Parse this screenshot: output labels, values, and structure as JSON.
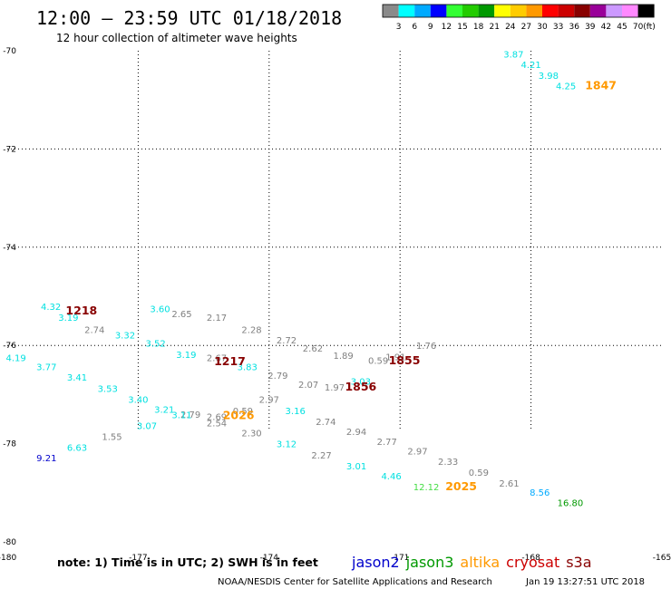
{
  "header": {
    "title": "12:00 — 23:59 UTC 01/18/2018",
    "subtitle": "12 hour collection of altimeter wave heights"
  },
  "legend": {
    "bins": [
      {
        "label": "3",
        "color": "#8a8a8a"
      },
      {
        "label": "6",
        "color": "#00ffff"
      },
      {
        "label": "9",
        "color": "#00aaff"
      },
      {
        "label": "12",
        "color": "#0000ff"
      },
      {
        "label": "15",
        "color": "#33ff33"
      },
      {
        "label": "18",
        "color": "#22cc00"
      },
      {
        "label": "21",
        "color": "#009900"
      },
      {
        "label": "24",
        "color": "#ffff00"
      },
      {
        "label": "27",
        "color": "#ffcc00"
      },
      {
        "label": "30",
        "color": "#ff9900"
      },
      {
        "label": "33",
        "color": "#ff0000"
      },
      {
        "label": "36",
        "color": "#cc0000"
      },
      {
        "label": "39",
        "color": "#880000"
      },
      {
        "label": "42",
        "color": "#990099"
      },
      {
        "label": "45",
        "color": "#cc99ff"
      },
      {
        "label": "70",
        "color": "#ff88ff"
      },
      {
        "label": "",
        "color": "#000000"
      }
    ],
    "unit": "(ft)"
  },
  "axes": {
    "lat_ticks": [
      {
        "lat": -70,
        "label": "-70"
      },
      {
        "lat": -72,
        "label": "-72"
      },
      {
        "lat": -74,
        "label": "-74"
      },
      {
        "lat": -76,
        "label": "-76"
      },
      {
        "lat": -78,
        "label": "-78"
      },
      {
        "lat": -80,
        "label": "-80"
      }
    ],
    "lon_ticks": [
      {
        "lon": -180,
        "label": "-180"
      },
      {
        "lon": -177,
        "label": "-177"
      },
      {
        "lon": -174,
        "label": "-174"
      },
      {
        "lon": -171,
        "label": "-171"
      },
      {
        "lon": -168,
        "label": "-168"
      },
      {
        "lon": -165,
        "label": "-165"
      }
    ],
    "grid_lon": [
      -177,
      -174,
      -171,
      -168
    ],
    "grid_lat": [
      -72,
      -74,
      -76
    ]
  },
  "footer": {
    "note": "note:  1) Time is in UTC;  2) SWH is in feet",
    "satellites": [
      {
        "name": "jason2",
        "color": "#0000cc"
      },
      {
        "name": "jason3",
        "color": "#009900"
      },
      {
        "name": "altika",
        "color": "#ff9900"
      },
      {
        "name": "cryosat",
        "color": "#cc0000"
      },
      {
        "name": "s3a",
        "color": "#880000"
      }
    ],
    "credit": "NOAA/NESDIS Center for Satellite Applications and Research",
    "timestamp": "Jan 19 13:27:51 UTC 2018"
  },
  "chart_data": {
    "type": "scatter",
    "title": "12:00 — 23:59 UTC 01/18/2018",
    "subtitle": "12 hour collection of altimeter wave heights",
    "xlim": [
      -180,
      -165
    ],
    "ylim": [
      -80,
      -70
    ],
    "unit": "ft",
    "observations": [
      {
        "lon": -168.4,
        "lat": -70.14,
        "v": "3.87",
        "c": "#00e0e0"
      },
      {
        "lon": -168.0,
        "lat": -70.35,
        "v": "4.21",
        "c": "#00e0e0"
      },
      {
        "lon": -167.6,
        "lat": -70.57,
        "v": "3.98",
        "c": "#00e0e0"
      },
      {
        "lon": -167.2,
        "lat": -70.78,
        "v": "4.25",
        "c": "#00e0e0"
      },
      {
        "lon": -176.5,
        "lat": -75.32,
        "v": "3.60",
        "c": "#00e0e0"
      },
      {
        "lon": -176.0,
        "lat": -75.42,
        "v": "2.65",
        "c": "#808080"
      },
      {
        "lon": -175.2,
        "lat": -75.5,
        "v": "2.17",
        "c": "#808080"
      },
      {
        "lon": -174.4,
        "lat": -75.75,
        "v": "2.28",
        "c": "#808080"
      },
      {
        "lon": -173.6,
        "lat": -75.96,
        "v": "2.72",
        "c": "#808080"
      },
      {
        "lon": -173.0,
        "lat": -76.13,
        "v": "2.62",
        "c": "#808080"
      },
      {
        "lon": -172.3,
        "lat": -76.27,
        "v": "1.89",
        "c": "#808080"
      },
      {
        "lon": -171.5,
        "lat": -76.37,
        "v": "0.59",
        "c": "#808080"
      },
      {
        "lon": -179.0,
        "lat": -75.28,
        "v": "4.32",
        "c": "#00e0e0"
      },
      {
        "lon": -178.6,
        "lat": -75.5,
        "v": "3.19",
        "c": "#00e0e0"
      },
      {
        "lon": -178.0,
        "lat": -75.75,
        "v": "2.74",
        "c": "#808080"
      },
      {
        "lon": -177.3,
        "lat": -75.86,
        "v": "3.32",
        "c": "#00e0e0"
      },
      {
        "lon": -176.6,
        "lat": -76.02,
        "v": "3.52",
        "c": "#00e0e0"
      },
      {
        "lon": -175.9,
        "lat": -76.25,
        "v": "3.19",
        "c": "#00e0e0"
      },
      {
        "lon": -175.2,
        "lat": -76.32,
        "v": "2.67",
        "c": "#808080"
      },
      {
        "lon": -174.5,
        "lat": -76.5,
        "v": "3.83",
        "c": "#00e0e0"
      },
      {
        "lon": -173.8,
        "lat": -76.68,
        "v": "2.79",
        "c": "#808080"
      },
      {
        "lon": -173.1,
        "lat": -76.86,
        "v": "2.07",
        "c": "#808080"
      },
      {
        "lon": -172.5,
        "lat": -76.92,
        "v": "1.97",
        "c": "#808080"
      },
      {
        "lon": -171.9,
        "lat": -76.8,
        "v": "3.03",
        "c": "#00e0e0"
      },
      {
        "lon": -171.1,
        "lat": -76.3,
        "v": "1.91",
        "c": "#808080"
      },
      {
        "lon": -170.4,
        "lat": -76.07,
        "v": "1.76",
        "c": "#808080"
      },
      {
        "lon": -179.8,
        "lat": -76.32,
        "v": "4.19",
        "c": "#00e0e0"
      },
      {
        "lon": -179.1,
        "lat": -76.5,
        "v": "3.77",
        "c": "#00e0e0"
      },
      {
        "lon": -178.4,
        "lat": -76.72,
        "v": "3.41",
        "c": "#00e0e0"
      },
      {
        "lon": -177.7,
        "lat": -76.95,
        "v": "3.53",
        "c": "#00e0e0"
      },
      {
        "lon": -177.0,
        "lat": -77.17,
        "v": "3.40",
        "c": "#00e0e0"
      },
      {
        "lon": -176.4,
        "lat": -77.37,
        "v": "3.21",
        "c": "#00e0e0"
      },
      {
        "lon": -175.8,
        "lat": -77.47,
        "v": "2.79",
        "c": "#808080"
      },
      {
        "lon": -175.2,
        "lat": -77.52,
        "v": "2.69",
        "c": "#808080"
      },
      {
        "lon": -174.6,
        "lat": -77.4,
        "v": "0.59",
        "c": "#808080"
      },
      {
        "lon": -174.0,
        "lat": -77.17,
        "v": "2.97",
        "c": "#808080"
      },
      {
        "lon": -173.4,
        "lat": -77.4,
        "v": "3.16",
        "c": "#00e0e0"
      },
      {
        "lon": -172.7,
        "lat": -77.62,
        "v": "2.74",
        "c": "#808080"
      },
      {
        "lon": -172.0,
        "lat": -77.82,
        "v": "2.94",
        "c": "#808080"
      },
      {
        "lon": -171.3,
        "lat": -78.03,
        "v": "2.77",
        "c": "#808080"
      },
      {
        "lon": -170.6,
        "lat": -78.22,
        "v": "2.97",
        "c": "#808080"
      },
      {
        "lon": -169.9,
        "lat": -78.43,
        "v": "2.33",
        "c": "#808080"
      },
      {
        "lon": -169.2,
        "lat": -78.65,
        "v": "0.59",
        "c": "#808080"
      },
      {
        "lon": -168.5,
        "lat": -78.87,
        "v": "2.61",
        "c": "#808080"
      },
      {
        "lon": -167.8,
        "lat": -79.06,
        "v": "8.56",
        "c": "#00aaff"
      },
      {
        "lon": -167.1,
        "lat": -79.27,
        "v": "16.80",
        "c": "#009900"
      },
      {
        "lon": -179.1,
        "lat": -78.36,
        "v": "9.21",
        "c": "#0000cc"
      },
      {
        "lon": -178.4,
        "lat": -78.15,
        "v": "6.63",
        "c": "#00e0e0"
      },
      {
        "lon": -177.6,
        "lat": -77.92,
        "v": "1.55",
        "c": "#808080"
      },
      {
        "lon": -176.8,
        "lat": -77.7,
        "v": "3.07",
        "c": "#00e0e0"
      },
      {
        "lon": -176.0,
        "lat": -77.48,
        "v": "3.11",
        "c": "#00e0e0"
      },
      {
        "lon": -175.2,
        "lat": -77.65,
        "v": "2.54",
        "c": "#808080"
      },
      {
        "lon": -174.4,
        "lat": -77.85,
        "v": "2.30",
        "c": "#808080"
      },
      {
        "lon": -173.6,
        "lat": -78.07,
        "v": "3.12",
        "c": "#00e0e0"
      },
      {
        "lon": -172.8,
        "lat": -78.3,
        "v": "2.27",
        "c": "#808080"
      },
      {
        "lon": -172.0,
        "lat": -78.52,
        "v": "3.01",
        "c": "#00e0e0"
      },
      {
        "lon": -171.2,
        "lat": -78.73,
        "v": "4.46",
        "c": "#00e0e0"
      },
      {
        "lon": -170.4,
        "lat": -78.95,
        "v": "12.12",
        "c": "#44dd44"
      }
    ],
    "time_labels": [
      {
        "lon": -166.4,
        "lat": -70.78,
        "t": "1847",
        "c": "#ff9900"
      },
      {
        "lon": -170.9,
        "lat": -76.38,
        "t": "1855",
        "c": "#880000"
      },
      {
        "lon": -178.3,
        "lat": -75.37,
        "t": "1218",
        "c": "#880000"
      },
      {
        "lon": -174.9,
        "lat": -76.4,
        "t": "1217",
        "c": "#880000"
      },
      {
        "lon": -171.9,
        "lat": -76.92,
        "t": "1856",
        "c": "#880000"
      },
      {
        "lon": -174.7,
        "lat": -77.5,
        "t": "2026",
        "c": "#ff9900"
      },
      {
        "lon": -169.6,
        "lat": -78.95,
        "t": "2025",
        "c": "#ff9900"
      }
    ]
  }
}
